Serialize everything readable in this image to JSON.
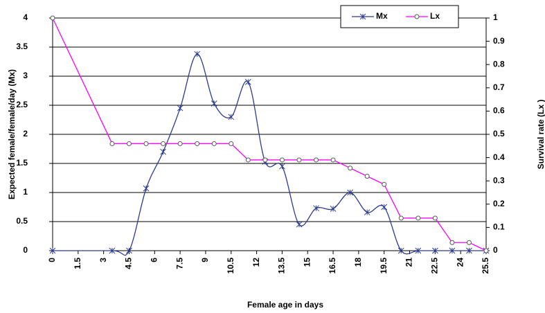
{
  "chart_data": {
    "type": "line",
    "x": [
      0,
      3.5,
      4.5,
      5.5,
      6.5,
      7.5,
      8.5,
      9.5,
      10.5,
      11.5,
      12.5,
      13.5,
      14.5,
      15.5,
      16.5,
      17.5,
      18.5,
      19.5,
      20.5,
      21.5,
      22.5,
      23.5,
      24.5,
      25.5
    ],
    "series": [
      {
        "name": "Mx",
        "color": "#2b3990",
        "values": [
          0,
          0,
          0,
          1.07,
          1.7,
          2.45,
          3.38,
          2.53,
          2.3,
          2.9,
          1.53,
          1.45,
          0.45,
          0.73,
          0.72,
          1.0,
          0.66,
          0.75,
          0,
          0,
          0,
          0,
          0,
          0
        ]
      },
      {
        "name": "Lx",
        "color": "#ff00ff",
        "axis": "y2",
        "values": [
          1.0,
          0.46,
          0.46,
          0.46,
          0.46,
          0.46,
          0.46,
          0.46,
          0.46,
          0.39,
          0.39,
          0.39,
          0.39,
          0.39,
          0.39,
          0.355,
          0.32,
          0.285,
          0.14,
          0.14,
          0.14,
          0.035,
          0.035,
          0
        ]
      }
    ],
    "xlim": [
      0,
      25.5
    ],
    "xticks": [
      0,
      1.5,
      3,
      4.5,
      6,
      7.5,
      9,
      10.5,
      12,
      13.5,
      15,
      16.5,
      18,
      19.5,
      21,
      22.5,
      24,
      25.5
    ],
    "ylim": [
      0,
      4
    ],
    "yticks": [
      0,
      0.5,
      1,
      1.5,
      2,
      2.5,
      3,
      3.5,
      4
    ],
    "y2lim": [
      0,
      1
    ],
    "y2ticks": [
      0,
      0.1,
      0.2,
      0.3,
      0.4,
      0.5,
      0.6,
      0.7,
      0.8,
      0.9,
      1
    ],
    "grid": true,
    "legend": "top-right",
    "xlabel": "Female age in days",
    "ylabel": "Expected female/female/day  (Mx)",
    "y2label": "Survival rate (Lx )"
  }
}
